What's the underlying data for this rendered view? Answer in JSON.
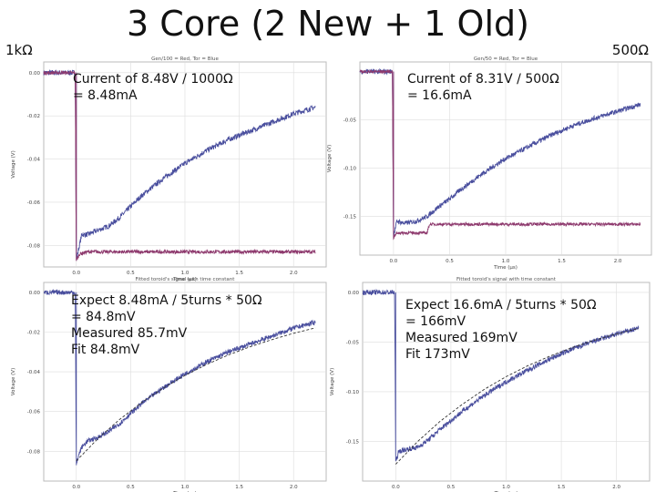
{
  "slide": {
    "title": "3 Core (2 New + 1 Old)",
    "left_label": "1kΩ",
    "right_label": "500Ω"
  },
  "notes": {
    "tl": [
      "Current of 8.48V / 1000Ω",
      "= 8.48mA"
    ],
    "tr": [
      "Current of 8.31V / 500Ω",
      "= 16.6mA"
    ],
    "bl": [
      "Expect 8.48mA / 5turns * 50Ω",
      " = 84.8mV",
      "Measured 85.7mV",
      "Fit 84.8mV"
    ],
    "br": [
      "Expect 16.6mA / 5turns * 50Ω",
      " = 166mV",
      "Measured 169mV",
      "Fit 173mV"
    ]
  },
  "colors": {
    "blue": "#4a4f9e",
    "red": "#8e3a6e",
    "fit": "#333333",
    "grid": "#dddddd"
  },
  "chart_data": [
    {
      "id": "tl",
      "type": "line",
      "title": "Gen/100 = Red, Tor = Blue",
      "xlabel": "Time (µs)",
      "ylabel": "Voltage (V)",
      "xlim": [
        -0.3,
        2.3
      ],
      "ylim": [
        -0.09,
        0.005
      ],
      "xticks": [
        0.0,
        0.5,
        1.0,
        1.5,
        2.0
      ],
      "xticklabels": [
        "0.0",
        "0.5",
        "1.0",
        "1.5",
        "2.0"
      ],
      "yticks": [
        0.0,
        -0.02,
        -0.04,
        -0.06,
        -0.08
      ],
      "yticklabels": [
        "0.00",
        "-0.02",
        "-0.04",
        "-0.06",
        "-0.08"
      ],
      "grid": true,
      "series": [
        {
          "color_key": "blue",
          "noise": 0.0012,
          "x": [
            -0.3,
            -0.01,
            0.0,
            0.02,
            0.05,
            0.1,
            0.2,
            0.3,
            0.4,
            0.5,
            0.6,
            0.8,
            1.0,
            1.2,
            1.4,
            1.6,
            1.8,
            2.0,
            2.2
          ],
          "y": [
            0.0,
            0.0,
            -0.087,
            -0.082,
            -0.075,
            -0.075,
            -0.073,
            -0.071,
            -0.067,
            -0.062,
            -0.057,
            -0.049,
            -0.042,
            -0.036,
            -0.031,
            -0.027,
            -0.023,
            -0.019,
            -0.016
          ]
        },
        {
          "color_key": "red",
          "noise": 0.0008,
          "x": [
            -0.3,
            -0.01,
            0.0,
            0.03,
            0.1,
            0.5,
            1.0,
            1.5,
            2.0,
            2.2
          ],
          "y": [
            0.0,
            0.0,
            -0.087,
            -0.084,
            -0.083,
            -0.083,
            -0.083,
            -0.083,
            -0.083,
            -0.083
          ]
        }
      ]
    },
    {
      "id": "tr",
      "type": "line",
      "title": "Gen/50 = Red, Tor = Blue",
      "xlabel": "Time (µs)",
      "ylabel": "Voltage (V)",
      "xlim": [
        -0.3,
        2.3
      ],
      "ylim": [
        -0.19,
        0.01
      ],
      "xticks": [
        0.0,
        0.5,
        1.0,
        1.5,
        2.0
      ],
      "xticklabels": [
        "0.0",
        "0.5",
        "1.0",
        "1.5",
        "2.0"
      ],
      "yticks": [
        -0.05,
        -0.1,
        -0.15
      ],
      "yticklabels": [
        "-0.05",
        "-0.10",
        "-0.15"
      ],
      "grid": true,
      "series": [
        {
          "color_key": "blue",
          "noise": 0.0025,
          "x": [
            -0.3,
            -0.01,
            0.0,
            0.03,
            0.1,
            0.2,
            0.3,
            0.4,
            0.5,
            0.6,
            0.8,
            1.0,
            1.2,
            1.4,
            1.6,
            1.8,
            2.0,
            2.2
          ],
          "y": [
            0.0,
            0.0,
            -0.17,
            -0.155,
            -0.157,
            -0.155,
            -0.15,
            -0.14,
            -0.132,
            -0.122,
            -0.105,
            -0.09,
            -0.078,
            -0.066,
            -0.056,
            -0.048,
            -0.041,
            -0.034
          ]
        },
        {
          "color_key": "red",
          "noise": 0.0015,
          "x": [
            -0.3,
            -0.01,
            0.0,
            0.03,
            0.1,
            0.3,
            0.32,
            0.4,
            1.0,
            1.5,
            2.0,
            2.2
          ],
          "y": [
            0.0,
            0.0,
            -0.172,
            -0.167,
            -0.167,
            -0.167,
            -0.158,
            -0.158,
            -0.158,
            -0.158,
            -0.158,
            -0.158
          ]
        }
      ]
    },
    {
      "id": "bl",
      "type": "line",
      "title": "Fitted toroid's signal with time constant",
      "xlabel": "Time (µs)",
      "ylabel": "Voltage (V)",
      "xlim": [
        -0.3,
        2.3
      ],
      "ylim": [
        -0.095,
        0.005
      ],
      "xticks": [
        0.0,
        0.5,
        1.0,
        1.5,
        2.0
      ],
      "xticklabels": [
        "0.0",
        "0.5",
        "1.0",
        "1.5",
        "2.0"
      ],
      "yticks": [
        0.0,
        -0.02,
        -0.04,
        -0.06,
        -0.08
      ],
      "yticklabels": [
        "0.00",
        "-0.02",
        "-0.04",
        "-0.06",
        "-0.08"
      ],
      "grid": true,
      "series": [
        {
          "color_key": "blue",
          "noise": 0.0012,
          "x": [
            -0.3,
            -0.01,
            0.0,
            0.02,
            0.05,
            0.1,
            0.2,
            0.3,
            0.4,
            0.5,
            0.6,
            0.8,
            1.0,
            1.2,
            1.4,
            1.6,
            1.8,
            2.0,
            2.2
          ],
          "y": [
            0.0,
            0.0,
            -0.087,
            -0.082,
            -0.078,
            -0.075,
            -0.073,
            -0.07,
            -0.066,
            -0.061,
            -0.056,
            -0.048,
            -0.041,
            -0.035,
            -0.03,
            -0.026,
            -0.022,
            -0.018,
            -0.015
          ]
        },
        {
          "color_key": "fit",
          "noise": 0,
          "dash": true,
          "x": [
            0.0,
            0.2,
            0.4,
            0.6,
            0.8,
            1.0,
            1.2,
            1.4,
            1.6,
            1.8,
            2.0,
            2.2
          ],
          "y": [
            -0.0848,
            -0.0736,
            -0.0639,
            -0.0555,
            -0.0482,
            -0.0418,
            -0.0363,
            -0.0315,
            -0.0274,
            -0.0238,
            -0.0206,
            -0.0179
          ]
        }
      ]
    },
    {
      "id": "br",
      "type": "line",
      "title": "Fitted toroid's signal with time constant",
      "xlabel": "Time (µs)",
      "ylabel": "Voltage (V)",
      "xlim": [
        -0.3,
        2.3
      ],
      "ylim": [
        -0.19,
        0.01
      ],
      "xticks": [
        0.0,
        0.5,
        1.0,
        1.5,
        2.0
      ],
      "xticklabels": [
        "0.0",
        "0.5",
        "1.0",
        "1.5",
        "2.0"
      ],
      "yticks": [
        0.0,
        -0.05,
        -0.1,
        -0.15
      ],
      "yticklabels": [
        "0.00",
        "-0.05",
        "-0.10",
        "-0.15"
      ],
      "grid": true,
      "series": [
        {
          "color_key": "blue",
          "noise": 0.0025,
          "x": [
            -0.3,
            -0.01,
            0.0,
            0.03,
            0.1,
            0.2,
            0.3,
            0.4,
            0.5,
            0.6,
            0.8,
            1.0,
            1.2,
            1.4,
            1.6,
            1.8,
            2.0,
            2.2
          ],
          "y": [
            0.0,
            0.0,
            -0.17,
            -0.16,
            -0.158,
            -0.156,
            -0.148,
            -0.138,
            -0.129,
            -0.12,
            -0.104,
            -0.09,
            -0.078,
            -0.067,
            -0.057,
            -0.049,
            -0.042,
            -0.036
          ]
        },
        {
          "color_key": "fit",
          "noise": 0,
          "dash": true,
          "x": [
            0.0,
            0.2,
            0.4,
            0.6,
            0.8,
            1.0,
            1.2,
            1.4,
            1.6,
            1.8,
            2.0,
            2.2
          ],
          "y": [
            -0.173,
            -0.15,
            -0.13,
            -0.113,
            -0.0978,
            -0.0849,
            -0.0737,
            -0.064,
            -0.0555,
            -0.0482,
            -0.0418,
            -0.0363
          ]
        }
      ]
    }
  ]
}
